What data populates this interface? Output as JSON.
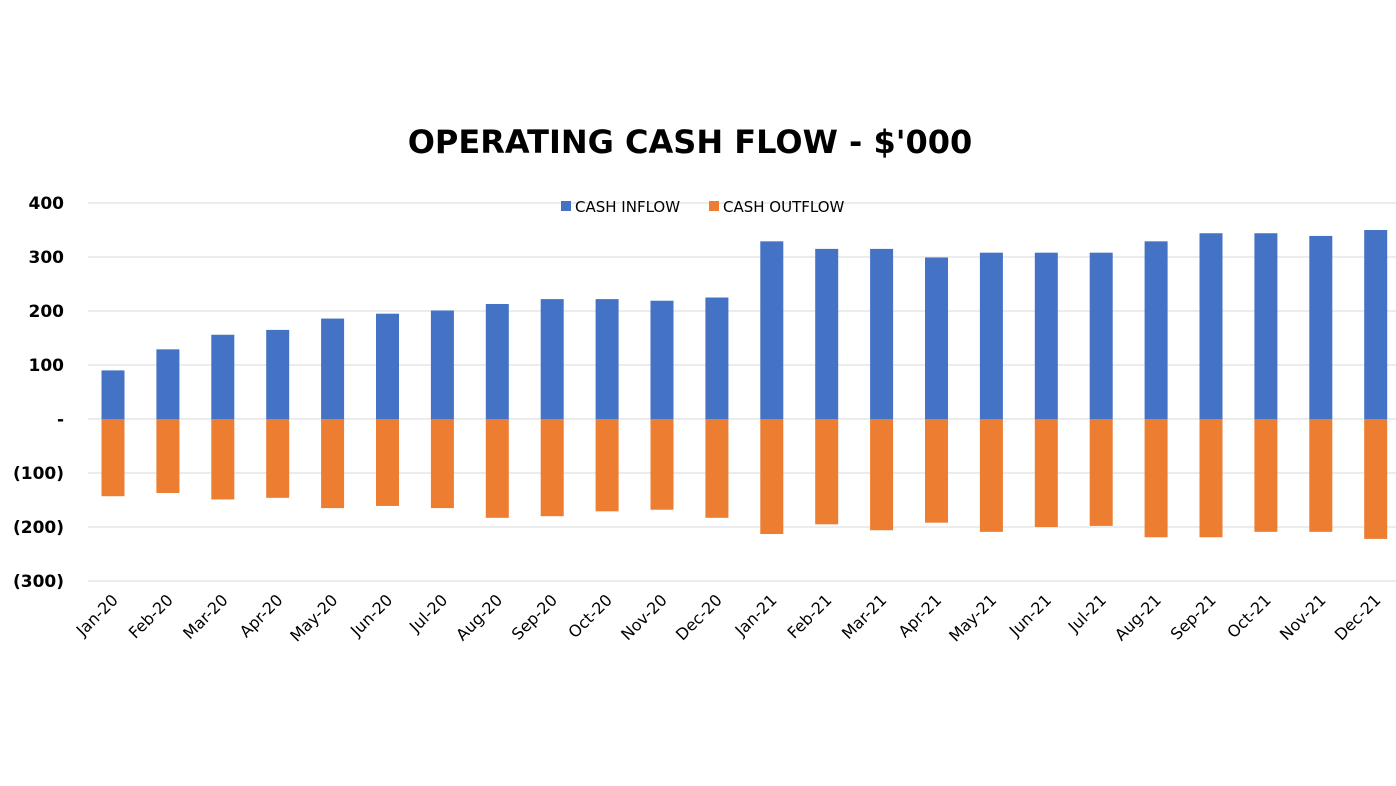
{
  "chart_data": {
    "type": "bar",
    "title": "OPERATING CASH FLOW - $'000",
    "xlabel": "",
    "ylabel": "",
    "ylim": [
      -300,
      400
    ],
    "yticks": [
      400,
      300,
      200,
      100,
      0,
      -100,
      -200,
      -300
    ],
    "ytick_labels": [
      "400",
      "300",
      "200",
      "100",
      "-",
      "(100)",
      "(200)",
      "(300)"
    ],
    "grid": true,
    "legend_position": "top",
    "categories": [
      "Jan-20",
      "Feb-20",
      "Mar-20",
      "Apr-20",
      "May-20",
      "Jun-20",
      "Jul-20",
      "Aug-20",
      "Sep-20",
      "Oct-20",
      "Nov-20",
      "Dec-20",
      "Jan-21",
      "Feb-21",
      "Mar-21",
      "Apr-21",
      "May-21",
      "Jun-21",
      "Jul-21",
      "Aug-21",
      "Sep-21",
      "Oct-21",
      "Nov-21",
      "Dec-21"
    ],
    "series": [
      {
        "name": "CASH INFLOW",
        "color": "#4472C4",
        "values": [
          90,
          129,
          156,
          165,
          186,
          195,
          201,
          213,
          222,
          222,
          219,
          225,
          329,
          315,
          315,
          299,
          308,
          308,
          308,
          329,
          344,
          344,
          339,
          350
        ]
      },
      {
        "name": "CASH OUTFLOW",
        "color": "#ED7D31",
        "values": [
          -143,
          -137,
          -149,
          -146,
          -165,
          -161,
          -165,
          -183,
          -180,
          -171,
          -168,
          -183,
          -213,
          -195,
          -206,
          -192,
          -209,
          -200,
          -198,
          -219,
          -219,
          -209,
          -209,
          -222
        ]
      }
    ]
  }
}
